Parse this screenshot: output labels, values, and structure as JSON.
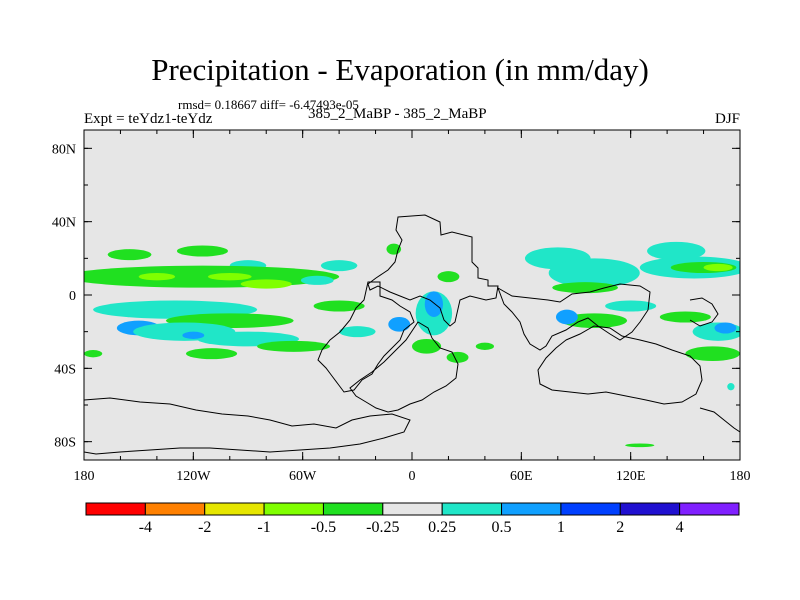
{
  "title": "Precipitation - Evaporation (in mm/day)",
  "stats_line": "rmsd= 0.18667 diff= -6.47493e-05",
  "expt_label": "Expt = teYdz1-teYdz",
  "runs_label": "385_2_MaBP - 385_2_MaBP",
  "season_label": "DJF",
  "chart_data": {
    "type": "heatmap",
    "projection": "cylindrical-equidistant",
    "title": "Precipitation - Evaporation (in mm/day)",
    "xlim": [
      -180,
      180
    ],
    "ylim": [
      -90,
      90
    ],
    "x_ticks": [
      {
        "value": -180,
        "label": "180"
      },
      {
        "value": -120,
        "label": "120W"
      },
      {
        "value": -60,
        "label": "60W"
      },
      {
        "value": 0,
        "label": "0"
      },
      {
        "value": 60,
        "label": "60E"
      },
      {
        "value": 120,
        "label": "120E"
      },
      {
        "value": 180,
        "label": "180"
      }
    ],
    "y_ticks": [
      {
        "value": 80,
        "label": "80N"
      },
      {
        "value": 40,
        "label": "40N"
      },
      {
        "value": 0,
        "label": "0"
      },
      {
        "value": -40,
        "label": "40S"
      },
      {
        "value": -80,
        "label": "80S"
      }
    ],
    "colorbar": {
      "levels": [
        "-4",
        "-2",
        "-1",
        "-0.5",
        "-0.25",
        "0.25",
        "0.5",
        "1",
        "2",
        "4"
      ],
      "colors": [
        "#ff0000",
        "#ff8000",
        "#e6e600",
        "#80ff00",
        "#20e020",
        "#e6e6e6",
        "#20e6c8",
        "#10a0ff",
        "#0040ff",
        "#2010d0",
        "#8020ff"
      ]
    },
    "background_color": "#e6e6e6",
    "anomaly_regions": [
      {
        "lon": -155,
        "lat": 22,
        "rx": 12,
        "ry": 3,
        "level": "-0.25"
      },
      {
        "lon": -115,
        "lat": 24,
        "rx": 14,
        "ry": 3,
        "level": "-0.25"
      },
      {
        "lon": -90,
        "lat": 16,
        "rx": 10,
        "ry": 3,
        "level": "0.25"
      },
      {
        "lon": -140,
        "lat": 12,
        "rx": 22,
        "ry": 3,
        "level": "0.25"
      },
      {
        "lon": -115,
        "lat": 10,
        "rx": 75,
        "ry": 6,
        "level": "-0.25"
      },
      {
        "lon": -140,
        "lat": 10,
        "rx": 10,
        "ry": 2,
        "level": "-0.5"
      },
      {
        "lon": -100,
        "lat": 10,
        "rx": 12,
        "ry": 2,
        "level": "-0.5"
      },
      {
        "lon": -80,
        "lat": 6,
        "rx": 14,
        "ry": 2.5,
        "level": "-0.5"
      },
      {
        "lon": -130,
        "lat": -8,
        "rx": 45,
        "ry": 5,
        "level": "0.25"
      },
      {
        "lon": -100,
        "lat": -14,
        "rx": 35,
        "ry": 4,
        "level": "-0.25"
      },
      {
        "lon": -150,
        "lat": -18,
        "rx": 12,
        "ry": 4,
        "level": "0.5"
      },
      {
        "lon": -125,
        "lat": -20,
        "rx": 28,
        "ry": 5,
        "level": "0.25"
      },
      {
        "lon": -90,
        "lat": -24,
        "rx": 28,
        "ry": 4,
        "level": "0.25"
      },
      {
        "lon": -120,
        "lat": -22,
        "rx": 6,
        "ry": 2,
        "level": "0.5"
      },
      {
        "lon": -65,
        "lat": -28,
        "rx": 20,
        "ry": 3,
        "level": "-0.25"
      },
      {
        "lon": -110,
        "lat": -32,
        "rx": 14,
        "ry": 3,
        "level": "-0.25"
      },
      {
        "lon": -175,
        "lat": -32,
        "rx": 5,
        "ry": 2,
        "level": "-0.25"
      },
      {
        "lon": -40,
        "lat": 16,
        "rx": 10,
        "ry": 3,
        "level": "0.25"
      },
      {
        "lon": -52,
        "lat": 8,
        "rx": 9,
        "ry": 2.5,
        "level": "0.25"
      },
      {
        "lon": -40,
        "lat": -6,
        "rx": 14,
        "ry": 3,
        "level": "-0.25"
      },
      {
        "lon": -30,
        "lat": -20,
        "rx": 10,
        "ry": 3,
        "level": "0.25"
      },
      {
        "lon": -7,
        "lat": -16,
        "rx": 6,
        "ry": 4,
        "level": "0.5"
      },
      {
        "lon": 12,
        "lat": -10,
        "rx": 10,
        "ry": 12,
        "level": "0.25"
      },
      {
        "lon": 12,
        "lat": -5,
        "rx": 5,
        "ry": 7,
        "level": "0.5"
      },
      {
        "lon": 8,
        "lat": -28,
        "rx": 8,
        "ry": 4,
        "level": "-0.25"
      },
      {
        "lon": 25,
        "lat": -34,
        "rx": 6,
        "ry": 3,
        "level": "-0.25"
      },
      {
        "lon": -10,
        "lat": 25,
        "rx": 4,
        "ry": 3,
        "level": "-0.25"
      },
      {
        "lon": 20,
        "lat": 10,
        "rx": 6,
        "ry": 3,
        "level": "-0.25"
      },
      {
        "lon": 40,
        "lat": -28,
        "rx": 5,
        "ry": 2,
        "level": "-0.25"
      },
      {
        "lon": 80,
        "lat": 20,
        "rx": 18,
        "ry": 6,
        "level": "0.25"
      },
      {
        "lon": 88,
        "lat": 12,
        "rx": 12,
        "ry": 2.5,
        "level": "0.5"
      },
      {
        "lon": 100,
        "lat": 12,
        "rx": 25,
        "ry": 8,
        "level": "0.25"
      },
      {
        "lon": 95,
        "lat": 4,
        "rx": 18,
        "ry": 3,
        "level": "-0.25"
      },
      {
        "lon": 100,
        "lat": -14,
        "rx": 18,
        "ry": 4,
        "level": "-0.25"
      },
      {
        "lon": 85,
        "lat": -12,
        "rx": 6,
        "ry": 4,
        "level": "0.5"
      },
      {
        "lon": 120,
        "lat": -6,
        "rx": 14,
        "ry": 3,
        "level": "0.25"
      },
      {
        "lon": 145,
        "lat": 24,
        "rx": 16,
        "ry": 5,
        "level": "0.25"
      },
      {
        "lon": 155,
        "lat": 15,
        "rx": 30,
        "ry": 6,
        "level": "0.25"
      },
      {
        "lon": 160,
        "lat": 15,
        "rx": 18,
        "ry": 3,
        "level": "-0.25"
      },
      {
        "lon": 168,
        "lat": 15,
        "rx": 8,
        "ry": 2,
        "level": "-0.5"
      },
      {
        "lon": 150,
        "lat": -12,
        "rx": 14,
        "ry": 3,
        "level": "-0.25"
      },
      {
        "lon": 168,
        "lat": -20,
        "rx": 14,
        "ry": 5,
        "level": "0.25"
      },
      {
        "lon": 172,
        "lat": -18,
        "rx": 6,
        "ry": 3,
        "level": "0.5"
      },
      {
        "lon": 165,
        "lat": -32,
        "rx": 15,
        "ry": 4,
        "level": "-0.25"
      },
      {
        "lon": 175,
        "lat": -50,
        "rx": 2,
        "ry": 2,
        "level": "0.25"
      },
      {
        "lon": 125,
        "lat": -82,
        "rx": 8,
        "ry": 1,
        "level": "-0.25"
      }
    ],
    "landmasses": [
      "Northern Africa and Europe",
      "South America",
      "Southern Africa",
      "India and Southeast Asia",
      "Australia",
      "Antarctica"
    ]
  }
}
